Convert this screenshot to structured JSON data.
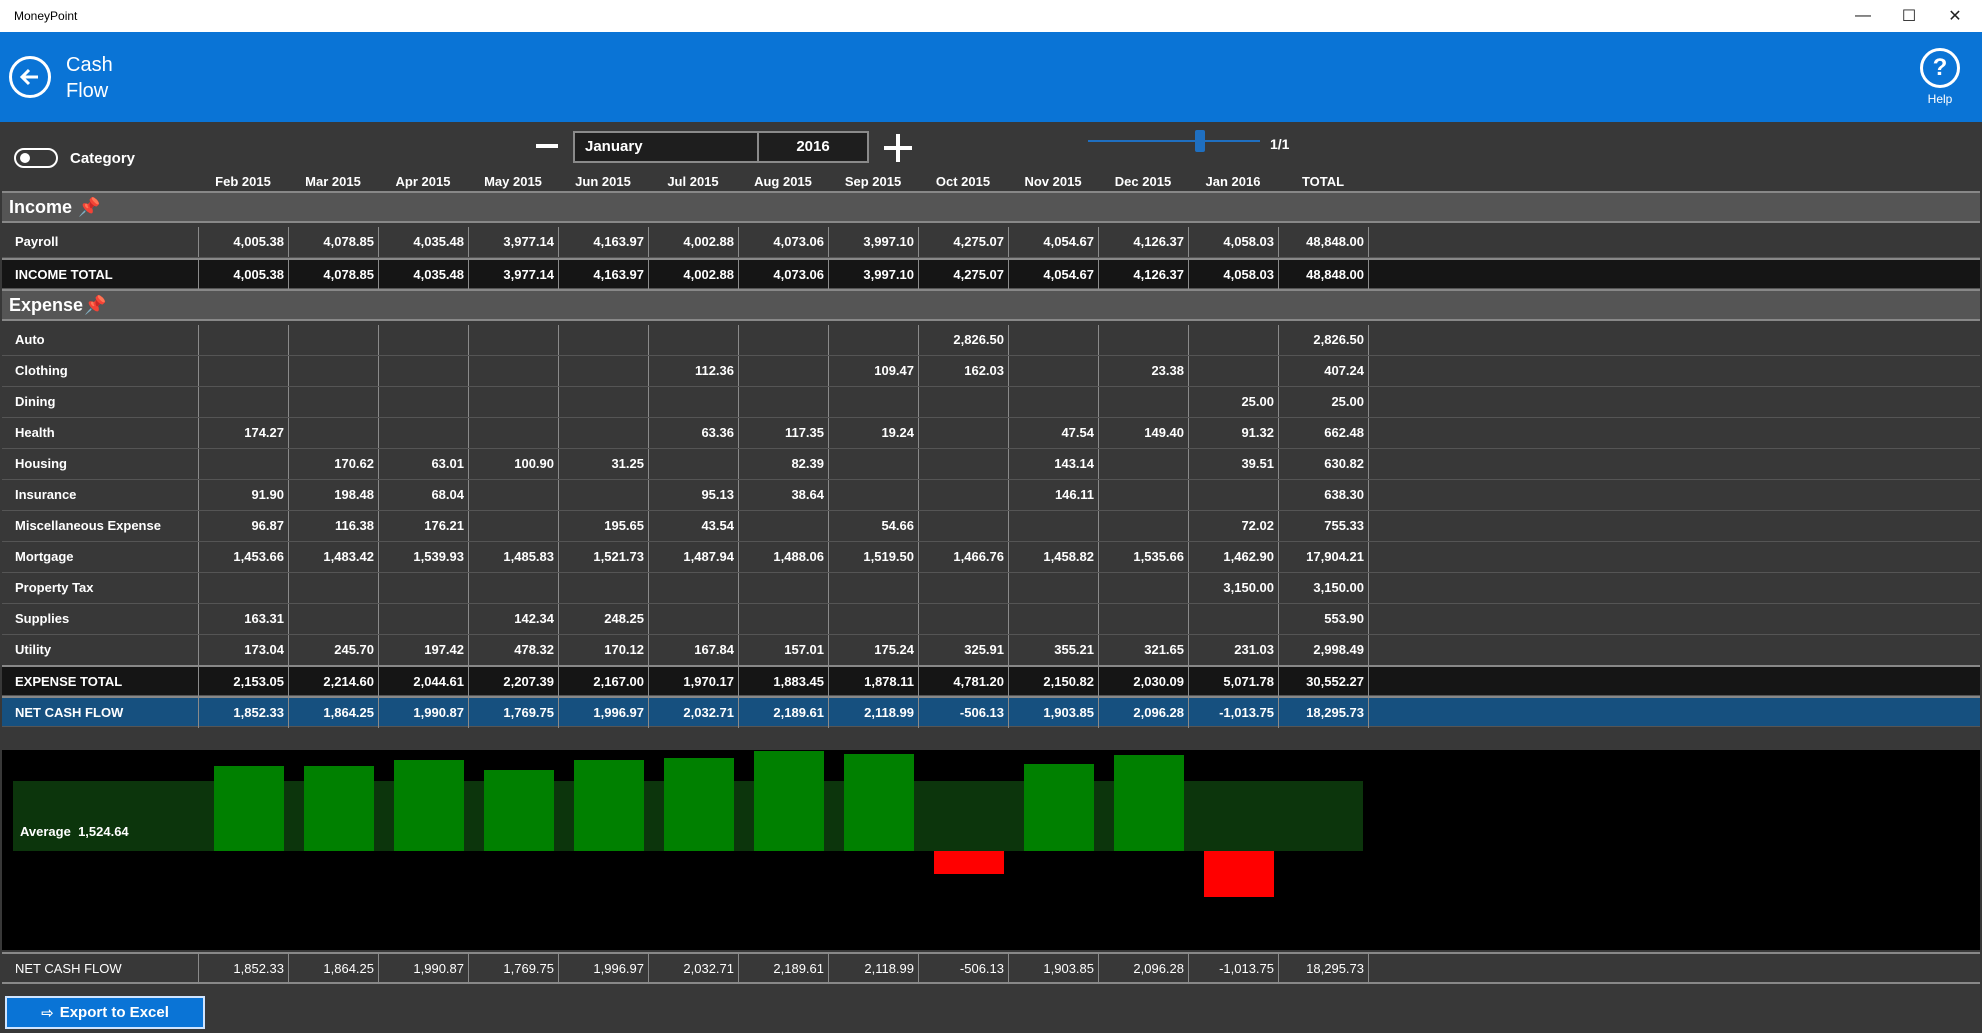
{
  "window": {
    "title": "MoneyPoint"
  },
  "header": {
    "title_line1": "Cash",
    "title_line2": "Flow",
    "help_label": "Help"
  },
  "toolbar": {
    "category_label": "Category",
    "month": "January",
    "year": "2016",
    "page": "1/1"
  },
  "columns": [
    "Feb 2015",
    "Mar 2015",
    "Apr 2015",
    "May 2015",
    "Jun 2015",
    "Jul 2015",
    "Aug 2015",
    "Sep 2015",
    "Oct 2015",
    "Nov 2015",
    "Dec 2015",
    "Jan 2016",
    "TOTAL"
  ],
  "income": {
    "label": "Income",
    "rows": [
      {
        "label": "Payroll",
        "values": [
          "4,005.38",
          "4,078.85",
          "4,035.48",
          "3,977.14",
          "4,163.97",
          "4,002.88",
          "4,073.06",
          "3,997.10",
          "4,275.07",
          "4,054.67",
          "4,126.37",
          "4,058.03",
          "48,848.00"
        ]
      }
    ],
    "total": {
      "label": "INCOME TOTAL",
      "values": [
        "4,005.38",
        "4,078.85",
        "4,035.48",
        "3,977.14",
        "4,163.97",
        "4,002.88",
        "4,073.06",
        "3,997.10",
        "4,275.07",
        "4,054.67",
        "4,126.37",
        "4,058.03",
        "48,848.00"
      ]
    }
  },
  "expense": {
    "label": "Expense",
    "rows": [
      {
        "label": "Auto",
        "values": [
          "",
          "",
          "",
          "",
          "",
          "",
          "",
          "",
          "2,826.50",
          "",
          "",
          "",
          "2,826.50"
        ]
      },
      {
        "label": "Clothing",
        "values": [
          "",
          "",
          "",
          "",
          "",
          "112.36",
          "",
          "109.47",
          "162.03",
          "",
          "23.38",
          "",
          "407.24"
        ]
      },
      {
        "label": "Dining",
        "values": [
          "",
          "",
          "",
          "",
          "",
          "",
          "",
          "",
          "",
          "",
          "",
          "25.00",
          "25.00"
        ]
      },
      {
        "label": "Health",
        "values": [
          "174.27",
          "",
          "",
          "",
          "",
          "63.36",
          "117.35",
          "19.24",
          "",
          "47.54",
          "149.40",
          "91.32",
          "662.48"
        ]
      },
      {
        "label": "Housing",
        "values": [
          "",
          "170.62",
          "63.01",
          "100.90",
          "31.25",
          "",
          "82.39",
          "",
          "",
          "143.14",
          "",
          "39.51",
          "630.82"
        ]
      },
      {
        "label": "Insurance",
        "values": [
          "91.90",
          "198.48",
          "68.04",
          "",
          "",
          "95.13",
          "38.64",
          "",
          "",
          "146.11",
          "",
          "",
          "638.30"
        ]
      },
      {
        "label": "Miscellaneous Expense",
        "values": [
          "96.87",
          "116.38",
          "176.21",
          "",
          "195.65",
          "43.54",
          "",
          "54.66",
          "",
          "",
          "",
          "72.02",
          "755.33"
        ]
      },
      {
        "label": "Mortgage",
        "values": [
          "1,453.66",
          "1,483.42",
          "1,539.93",
          "1,485.83",
          "1,521.73",
          "1,487.94",
          "1,488.06",
          "1,519.50",
          "1,466.76",
          "1,458.82",
          "1,535.66",
          "1,462.90",
          "17,904.21"
        ]
      },
      {
        "label": "Property Tax",
        "values": [
          "",
          "",
          "",
          "",
          "",
          "",
          "",
          "",
          "",
          "",
          "",
          "3,150.00",
          "3,150.00"
        ]
      },
      {
        "label": "Supplies",
        "values": [
          "163.31",
          "",
          "",
          "142.34",
          "248.25",
          "",
          "",
          "",
          "",
          "",
          "",
          "",
          "553.90"
        ]
      },
      {
        "label": "Utility",
        "values": [
          "173.04",
          "245.70",
          "197.42",
          "478.32",
          "170.12",
          "167.84",
          "157.01",
          "175.24",
          "325.91",
          "355.21",
          "321.65",
          "231.03",
          "2,998.49"
        ]
      }
    ],
    "total": {
      "label": "EXPENSE TOTAL",
      "values": [
        "2,153.05",
        "2,214.60",
        "2,044.61",
        "2,207.39",
        "2,167.00",
        "1,970.17",
        "1,883.45",
        "1,878.11",
        "4,781.20",
        "2,150.82",
        "2,030.09",
        "5,071.78",
        "30,552.27"
      ]
    }
  },
  "net": {
    "label": "NET CASH FLOW",
    "values": [
      "1,852.33",
      "1,864.25",
      "1,990.87",
      "1,769.75",
      "1,996.97",
      "2,032.71",
      "2,189.61",
      "2,118.99",
      "-506.13",
      "1,903.85",
      "2,096.28",
      "-1,013.75",
      "18,295.73"
    ]
  },
  "chart_data": {
    "type": "bar",
    "categories": [
      "Feb 2015",
      "Mar 2015",
      "Apr 2015",
      "May 2015",
      "Jun 2015",
      "Jul 2015",
      "Aug 2015",
      "Sep 2015",
      "Oct 2015",
      "Nov 2015",
      "Dec 2015",
      "Jan 2016"
    ],
    "values": [
      1852.33,
      1864.25,
      1990.87,
      1769.75,
      1996.97,
      2032.71,
      2189.61,
      2118.99,
      -506.13,
      1903.85,
      2096.28,
      -1013.75
    ],
    "average_label": "Average",
    "average_value": "1,524.64",
    "positive_color": "#008000",
    "negative_color": "#ff0000"
  },
  "footer": {
    "net_label": "NET CASH FLOW",
    "export_label": "Export to Excel"
  }
}
